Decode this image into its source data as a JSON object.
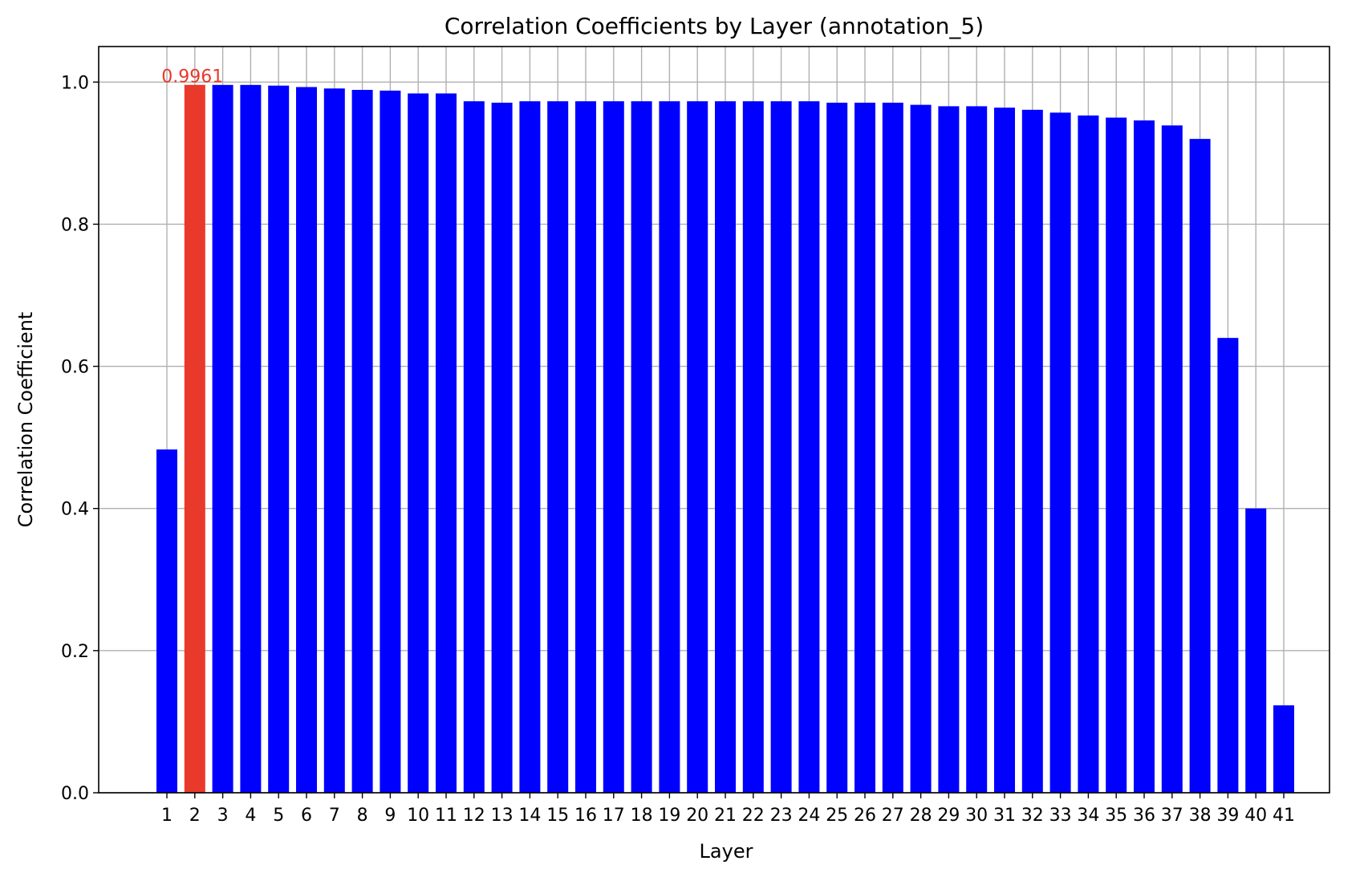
{
  "chart_data": {
    "type": "bar",
    "title": "Correlation Coefficients by Layer (annotation_5)",
    "xlabel": "Layer",
    "ylabel": "Correlation Coefficient",
    "ylim": [
      0.0,
      1.05
    ],
    "yticks": [
      "0.0",
      "0.2",
      "0.4",
      "0.6",
      "0.8",
      "1.0"
    ],
    "grid": true,
    "categories": [
      "1",
      "2",
      "3",
      "4",
      "5",
      "6",
      "7",
      "8",
      "9",
      "10",
      "11",
      "12",
      "13",
      "14",
      "15",
      "16",
      "17",
      "18",
      "19",
      "20",
      "21",
      "22",
      "23",
      "24",
      "25",
      "26",
      "27",
      "28",
      "29",
      "30",
      "31",
      "32",
      "33",
      "34",
      "35",
      "36",
      "37",
      "38",
      "39",
      "40",
      "41"
    ],
    "values": [
      0.483,
      0.9961,
      0.996,
      0.996,
      0.995,
      0.993,
      0.991,
      0.989,
      0.988,
      0.984,
      0.984,
      0.973,
      0.971,
      0.973,
      0.973,
      0.973,
      0.973,
      0.973,
      0.973,
      0.973,
      0.973,
      0.973,
      0.973,
      0.973,
      0.971,
      0.971,
      0.971,
      0.968,
      0.966,
      0.966,
      0.964,
      0.961,
      0.957,
      0.953,
      0.95,
      0.946,
      0.939,
      0.92,
      0.64,
      0.4,
      0.123
    ],
    "bar_color": "#0000ff",
    "highlight": {
      "index": 1,
      "color": "#e8392a",
      "label": "0.9961",
      "label_color": "#e8392a"
    }
  }
}
